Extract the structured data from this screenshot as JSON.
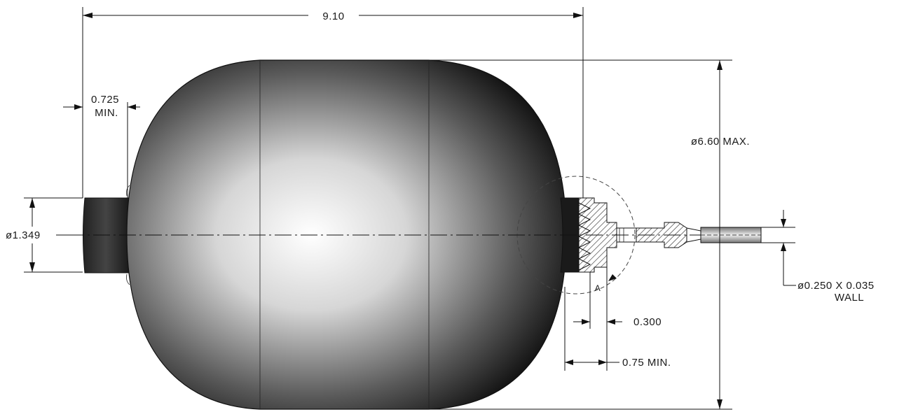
{
  "drawing": {
    "dimensions": {
      "overall_length": "9.10",
      "shell_diameter": "ø6.60 MAX.",
      "port_diameter": "ø1.349",
      "port_offset_value": "0.725",
      "port_offset_note": "MIN.",
      "tube_spec_line1": "ø0.250 X 0.035",
      "tube_spec_line2": "WALL",
      "fitting_gap": "0.300",
      "fitting_length": "0.75 MIN.",
      "detail_label": "A"
    },
    "colors": {
      "ink": "#111111",
      "shell_light": "#ffffff",
      "shell_dark": "#141414",
      "hatch": "#222222"
    }
  }
}
